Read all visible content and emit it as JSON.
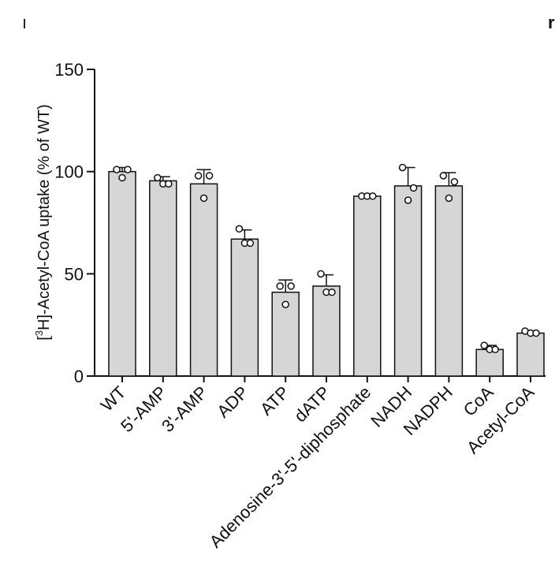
{
  "chart_data": {
    "type": "bar",
    "ylabel_prefix": "[",
    "ylabel_sup": "3",
    "ylabel_rest": "H]-Acetyl-CoA uptake (% of WT)",
    "ylim": [
      0,
      150
    ],
    "yticks": [
      "0",
      "50",
      "100",
      "150"
    ],
    "yticks_values": [
      0,
      50,
      100,
      150
    ],
    "categories": [
      "WT",
      "5'-AMP",
      "3'-AMP",
      "ADP",
      "ATP",
      "dATP",
      "Adenosine-3'-5'-diphosphate",
      "NADH",
      "NADPH",
      "CoA",
      "Acetyl-CoA"
    ],
    "values": [
      100,
      95.5,
      94,
      67,
      41,
      44,
      88,
      93,
      93,
      13,
      21
    ],
    "errors": [
      2,
      2,
      7,
      4.5,
      6,
      5.5,
      0.5,
      9,
      6.5,
      2,
      1
    ],
    "points": [
      [
        101,
        97,
        101
      ],
      [
        97,
        94,
        94
      ],
      [
        98,
        87,
        98
      ],
      [
        72,
        65,
        65
      ],
      [
        44,
        35,
        44
      ],
      [
        50,
        41,
        41
      ],
      [
        88,
        88,
        88
      ],
      [
        102,
        86,
        92
      ],
      [
        98,
        87,
        95
      ],
      [
        15,
        13,
        13
      ],
      [
        22,
        21,
        21
      ]
    ],
    "colors": {
      "bar": "#d6d6d6",
      "stroke": "#111111"
    },
    "grid": false
  },
  "fragments": {
    "right_letter": "r"
  }
}
